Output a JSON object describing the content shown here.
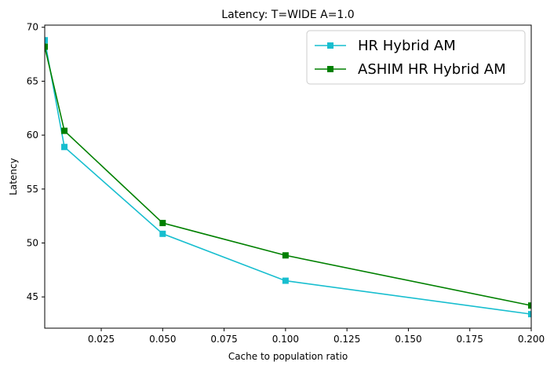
{
  "chart_data": {
    "type": "line",
    "title": "Latency: T=WIDE A=1.0",
    "xlabel": "Cache to population ratio",
    "ylabel": "Latency",
    "xlim": [
      0.002,
      0.2
    ],
    "ylim": [
      42.1,
      70.2
    ],
    "xticks": [
      0.025,
      0.05,
      0.075,
      0.1,
      0.125,
      0.15,
      0.175,
      0.2
    ],
    "xtick_labels": [
      "0.025",
      "0.050",
      "0.075",
      "0.100",
      "0.125",
      "0.150",
      "0.175",
      "0.200"
    ],
    "yticks": [
      45,
      50,
      55,
      60,
      65,
      70
    ],
    "ytick_labels": [
      "45",
      "50",
      "55",
      "60",
      "65",
      "70"
    ],
    "grid": false,
    "legend_position": "top-right",
    "series": [
      {
        "name": "HR Hybrid AM",
        "color": "#17becf",
        "marker": "square",
        "x": [
          0.002,
          0.01,
          0.05,
          0.1,
          0.2
        ],
        "y": [
          68.8,
          58.9,
          50.85,
          46.5,
          43.4
        ]
      },
      {
        "name": "ASHIM HR Hybrid AM",
        "color": "#008000",
        "marker": "square",
        "x": [
          0.002,
          0.01,
          0.05,
          0.1,
          0.2
        ],
        "y": [
          68.2,
          60.4,
          51.85,
          48.85,
          44.2
        ]
      }
    ]
  }
}
